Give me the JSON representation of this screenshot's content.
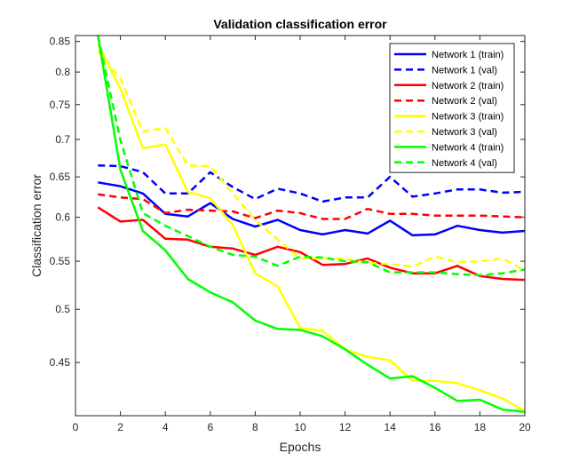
{
  "chart_data": {
    "type": "line",
    "title": "Validation classification error",
    "xlabel": "Epochs",
    "ylabel": "Classification error",
    "yscale": "log",
    "xlim": [
      0,
      20
    ],
    "ylim": [
      0.405,
      0.86
    ],
    "xticks": [
      0,
      2,
      4,
      6,
      8,
      10,
      12,
      14,
      16,
      18,
      20
    ],
    "xtick_labels": [
      "0",
      "2",
      "4",
      "6",
      "8",
      "10",
      "12",
      "14",
      "16",
      "18",
      "20"
    ],
    "yticks": [
      0.45,
      0.5,
      0.55,
      0.6,
      0.65,
      0.7,
      0.75,
      0.8,
      0.85
    ],
    "ytick_labels": [
      "0.45",
      "0.5",
      "0.55",
      "0.6",
      "0.65",
      "0.7",
      "0.75",
      "0.8",
      "0.85"
    ],
    "grid": false,
    "legend_position": "top-right",
    "x": [
      1,
      2,
      3,
      4,
      5,
      6,
      7,
      8,
      9,
      10,
      11,
      12,
      13,
      14,
      15,
      16,
      17,
      18,
      19,
      20
    ],
    "series": [
      {
        "name": "Network 1 (train)",
        "color": "#0000ff",
        "dash": "solid",
        "values": [
          0.643,
          0.638,
          0.629,
          0.604,
          0.601,
          0.617,
          0.598,
          0.589,
          0.597,
          0.585,
          0.58,
          0.585,
          0.581,
          0.596,
          0.579,
          0.58,
          0.59,
          0.585,
          0.582,
          0.584
        ]
      },
      {
        "name": "Network 1 (val)",
        "color": "#0000ff",
        "dash": "dashed",
        "values": [
          0.665,
          0.664,
          0.656,
          0.629,
          0.629,
          0.656,
          0.637,
          0.622,
          0.635,
          0.629,
          0.619,
          0.624,
          0.624,
          0.65,
          0.625,
          0.629,
          0.634,
          0.634,
          0.63,
          0.631
        ]
      },
      {
        "name": "Network 2 (train)",
        "color": "#ff0000",
        "dash": "solid",
        "values": [
          0.612,
          0.595,
          0.597,
          0.575,
          0.574,
          0.566,
          0.564,
          0.557,
          0.566,
          0.56,
          0.546,
          0.547,
          0.553,
          0.543,
          0.537,
          0.537,
          0.545,
          0.534,
          0.531,
          0.53
        ]
      },
      {
        "name": "Network 2 (val)",
        "color": "#ff0000",
        "dash": "dashed",
        "values": [
          0.628,
          0.624,
          0.622,
          0.605,
          0.609,
          0.608,
          0.607,
          0.599,
          0.608,
          0.605,
          0.598,
          0.598,
          0.61,
          0.604,
          0.604,
          0.602,
          0.602,
          0.602,
          0.601,
          0.6
        ]
      },
      {
        "name": "Network 3 (train)",
        "color": "#ffff00",
        "dash": "solid",
        "values": [
          0.845,
          0.774,
          0.688,
          0.693,
          0.631,
          0.623,
          0.591,
          0.537,
          0.523,
          0.482,
          0.479,
          0.462,
          0.455,
          0.452,
          0.434,
          0.434,
          0.432,
          0.426,
          0.419,
          0.409
        ]
      },
      {
        "name": "Network 3 (val)",
        "color": "#ffff00",
        "dash": "dashed",
        "values": [
          0.834,
          0.79,
          0.711,
          0.716,
          0.665,
          0.664,
          0.629,
          0.597,
          0.574,
          0.553,
          0.553,
          0.553,
          0.548,
          0.547,
          0.544,
          0.555,
          0.549,
          0.55,
          0.553,
          0.54
        ]
      },
      {
        "name": "Network 4 (train)",
        "color": "#00ff00",
        "dash": "solid",
        "values": [
          0.86,
          0.659,
          0.584,
          0.562,
          0.531,
          0.517,
          0.507,
          0.489,
          0.481,
          0.48,
          0.474,
          0.462,
          0.448,
          0.436,
          0.438,
          0.428,
          0.417,
          0.418,
          0.41,
          0.408
        ]
      },
      {
        "name": "Network 4 (val)",
        "color": "#00ff00",
        "dash": "dashed",
        "values": [
          0.86,
          0.699,
          0.605,
          0.59,
          0.578,
          0.566,
          0.557,
          0.555,
          0.545,
          0.555,
          0.554,
          0.55,
          0.549,
          0.538,
          0.538,
          0.538,
          0.536,
          0.535,
          0.537,
          0.541
        ]
      }
    ]
  }
}
